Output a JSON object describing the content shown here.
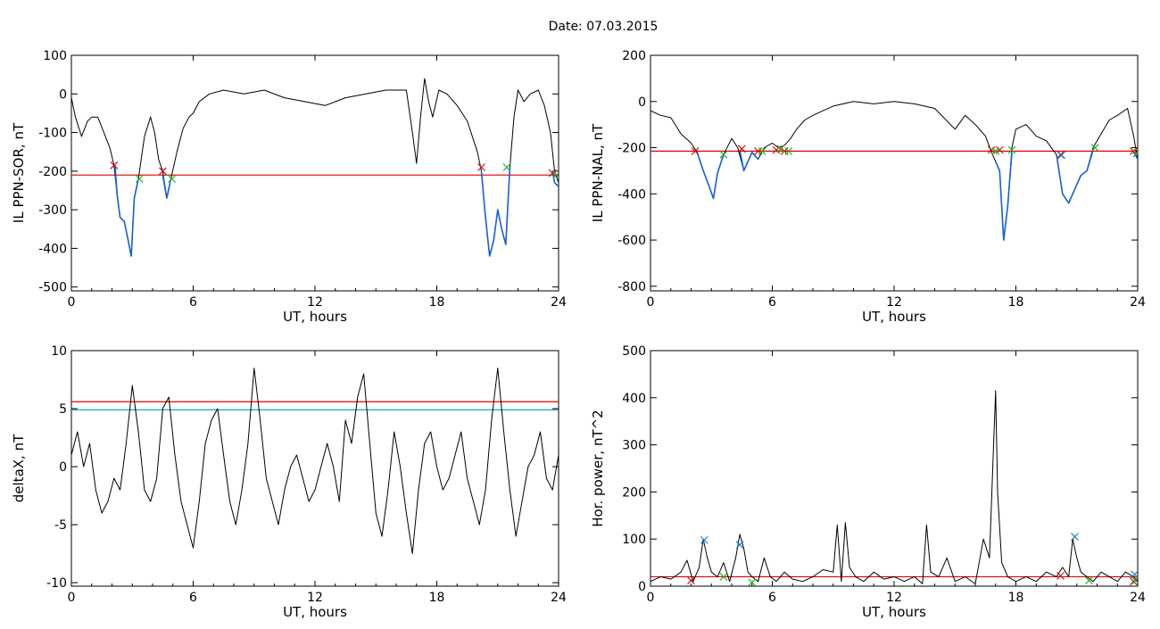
{
  "header": {
    "title": "Date:  07.03.2015"
  },
  "colors": {
    "trace": "#000000",
    "active": "#1560d6",
    "threshold": "#e00000",
    "cyan_threshold": "#009fb0",
    "green_marker": "#20b020",
    "red_marker": "#d01010",
    "blue_marker": "#1f7fd0"
  },
  "chart_data": [
    {
      "id": "sor",
      "type": "line",
      "xlabel": "UT, hours",
      "ylabel": "IL PPN-SOR, nT",
      "xlim": [
        0,
        24
      ],
      "ylim": [
        -510,
        100
      ],
      "xticks": [
        0,
        6,
        12,
        18,
        24
      ],
      "yticks": [
        100,
        0,
        -100,
        -200,
        -300,
        -400,
        -500
      ],
      "thresholds": [
        {
          "value": -210,
          "color": "red"
        }
      ],
      "series": [
        {
          "x": [
            0,
            0.2,
            0.5,
            0.8,
            1.0,
            1.3,
            1.6,
            1.9,
            2.1,
            2.25,
            2.4,
            2.6,
            2.8,
            2.95,
            3.1,
            3.3,
            3.6,
            3.9,
            4.1,
            4.3,
            4.5,
            4.7,
            4.9,
            5.2,
            5.5,
            5.8,
            6.0,
            6.3,
            6.8,
            7.5,
            8.5,
            9.5,
            10.5,
            11.5,
            12.5,
            13.5,
            14.5,
            15.5,
            16.5,
            16.8,
            17.0,
            17.2,
            17.4,
            17.6,
            17.8,
            18.1,
            18.5,
            19.0,
            19.5,
            20.0,
            20.2,
            20.4,
            20.6,
            20.8,
            21.0,
            21.2,
            21.4,
            21.6,
            21.8,
            22.0,
            22.3,
            22.6,
            23.0,
            23.3,
            23.6,
            23.8,
            24.0
          ],
          "y": [
            -10,
            -60,
            -110,
            -70,
            -60,
            -60,
            -100,
            -140,
            -185,
            -260,
            -320,
            -330,
            -380,
            -420,
            -270,
            -220,
            -110,
            -60,
            -100,
            -170,
            -200,
            -270,
            -220,
            -150,
            -90,
            -60,
            -50,
            -20,
            0,
            10,
            0,
            10,
            -10,
            -20,
            -30,
            -10,
            0,
            10,
            10,
            -100,
            -180,
            -60,
            40,
            -20,
            -60,
            10,
            0,
            -30,
            -70,
            -150,
            -200,
            -320,
            -420,
            -380,
            -300,
            -350,
            -390,
            -190,
            -60,
            10,
            -20,
            0,
            10,
            -30,
            -100,
            -200,
            -230
          ]
        },
        {
          "x": [
            2.15,
            2.25,
            2.4,
            2.6,
            2.8,
            2.95,
            3.1,
            3.3
          ],
          "y": [
            -185,
            -260,
            -320,
            -330,
            -380,
            -420,
            -270,
            -220
          ]
        },
        {
          "x": [
            4.5,
            4.7,
            4.9
          ],
          "y": [
            -210,
            -270,
            -220
          ]
        },
        {
          "x": [
            20.2,
            20.4,
            20.6,
            20.8,
            21.0,
            21.2,
            21.4,
            21.6
          ],
          "y": [
            -200,
            -320,
            -420,
            -380,
            -300,
            -350,
            -390,
            -190
          ]
        },
        {
          "x": [
            23.7,
            23.8,
            24.0
          ],
          "y": [
            -200,
            -230,
            -240
          ]
        }
      ],
      "red_markers": [
        [
          2.1,
          -185
        ],
        [
          4.5,
          -200
        ],
        [
          20.2,
          -190
        ],
        [
          23.7,
          -205
        ]
      ],
      "green_markers": [
        [
          3.35,
          -220
        ],
        [
          4.95,
          -220
        ],
        [
          21.45,
          -190
        ],
        [
          23.9,
          -210
        ]
      ],
      "blue_markers": []
    },
    {
      "id": "nal",
      "type": "line",
      "xlabel": "UT, hours",
      "ylabel": "IL PPN-NAL, nT",
      "xlim": [
        0,
        24
      ],
      "ylim": [
        -820,
        200
      ],
      "xticks": [
        0,
        6,
        12,
        18,
        24
      ],
      "yticks": [
        200,
        0,
        -200,
        -400,
        -600,
        -800
      ],
      "thresholds": [
        {
          "value": -215,
          "color": "red"
        }
      ],
      "series": [
        {
          "x": [
            0,
            0.5,
            1.0,
            1.5,
            2.0,
            2.3,
            2.6,
            2.9,
            3.1,
            3.3,
            3.6,
            4.0,
            4.3,
            4.6,
            4.8,
            5.0,
            5.3,
            5.6,
            6.0,
            6.3,
            6.6,
            6.9,
            7.2,
            7.6,
            8.0,
            8.5,
            9.0,
            10.0,
            11.0,
            12.0,
            13.0,
            14.0,
            15.0,
            15.5,
            16.0,
            16.5,
            16.8,
            17.0,
            17.2,
            17.4,
            17.6,
            17.8,
            18.0,
            18.5,
            19.0,
            19.5,
            20.0,
            20.3,
            20.6,
            20.9,
            21.2,
            21.5,
            21.8,
            22.2,
            22.6,
            23.0,
            23.5,
            23.8,
            24.0
          ],
          "y": [
            -40,
            -60,
            -70,
            -140,
            -180,
            -220,
            -300,
            -370,
            -420,
            -310,
            -230,
            -160,
            -200,
            -300,
            -260,
            -220,
            -250,
            -200,
            -180,
            -200,
            -190,
            -160,
            -120,
            -80,
            -60,
            -40,
            -20,
            0,
            -10,
            0,
            -10,
            -30,
            -120,
            -60,
            -100,
            -150,
            -220,
            -260,
            -300,
            -600,
            -450,
            -200,
            -120,
            -100,
            -150,
            -170,
            -230,
            -400,
            -440,
            -380,
            -320,
            -300,
            -200,
            -140,
            -80,
            -60,
            -30,
            -150,
            -250
          ]
        },
        {
          "x": [
            2.3,
            2.6,
            2.9,
            3.1,
            3.3,
            3.6
          ],
          "y": [
            -220,
            -300,
            -370,
            -420,
            -310,
            -230
          ]
        },
        {
          "x": [
            4.4,
            4.6,
            4.8,
            5.0,
            5.3
          ],
          "y": [
            -210,
            -300,
            -260,
            -220,
            -250
          ]
        },
        {
          "x": [
            17.0,
            17.2,
            17.4,
            17.6,
            17.8
          ],
          "y": [
            -260,
            -300,
            -600,
            -450,
            -220
          ]
        },
        {
          "x": [
            20.0,
            20.3,
            20.6,
            20.9,
            21.2,
            21.5,
            21.8
          ],
          "y": [
            -230,
            -400,
            -440,
            -380,
            -320,
            -300,
            -210
          ]
        },
        {
          "x": [
            23.8,
            24.0
          ],
          "y": [
            -220,
            -250
          ]
        }
      ],
      "red_markers": [
        [
          2.2,
          -215
        ],
        [
          4.5,
          -205
        ],
        [
          5.3,
          -215
        ],
        [
          6.2,
          -210
        ],
        [
          6.6,
          -215
        ],
        [
          16.8,
          -210
        ],
        [
          17.2,
          -210
        ],
        [
          20.2,
          -230
        ],
        [
          23.8,
          -215
        ]
      ],
      "green_markers": [
        [
          3.6,
          -230
        ],
        [
          5.5,
          -215
        ],
        [
          6.4,
          -205
        ],
        [
          6.8,
          -215
        ],
        [
          17.0,
          -215
        ],
        [
          17.8,
          -210
        ],
        [
          21.9,
          -200
        ],
        [
          23.95,
          -225
        ]
      ],
      "blue_markers": [
        [
          20.25,
          -232
        ]
      ]
    },
    {
      "id": "deltax",
      "type": "line",
      "xlabel": "UT, hours",
      "ylabel": "deltaX, nT",
      "xlim": [
        0,
        24
      ],
      "ylim": [
        -10.3,
        10
      ],
      "xticks": [
        0,
        6,
        12,
        18,
        24
      ],
      "yticks": [
        10,
        5,
        0,
        -5,
        -10
      ],
      "thresholds": [
        {
          "value": 5.6,
          "color": "red"
        },
        {
          "value": 4.9,
          "color": "cyan"
        }
      ],
      "series": [
        {
          "x": [
            0,
            0.3,
            0.6,
            0.9,
            1.2,
            1.5,
            1.8,
            2.1,
            2.4,
            2.7,
            3.0,
            3.3,
            3.6,
            3.9,
            4.2,
            4.5,
            4.8,
            5.1,
            5.4,
            5.7,
            6.0,
            6.3,
            6.6,
            6.9,
            7.2,
            7.5,
            7.8,
            8.1,
            8.4,
            8.7,
            9.0,
            9.3,
            9.6,
            9.9,
            10.2,
            10.5,
            10.8,
            11.1,
            11.4,
            11.7,
            12.0,
            12.3,
            12.6,
            12.9,
            13.2,
            13.5,
            13.8,
            14.1,
            14.4,
            14.7,
            15.0,
            15.3,
            15.6,
            15.9,
            16.2,
            16.5,
            16.8,
            17.1,
            17.4,
            17.7,
            18.0,
            18.3,
            18.6,
            18.9,
            19.2,
            19.5,
            19.8,
            20.1,
            20.4,
            20.7,
            21.0,
            21.3,
            21.6,
            21.9,
            22.2,
            22.5,
            22.8,
            23.1,
            23.4,
            23.7,
            24.0
          ],
          "y": [
            1,
            3,
            0,
            2,
            -2,
            -4,
            -3,
            -1,
            -2,
            2,
            7,
            3,
            -2,
            -3,
            -1,
            5,
            6,
            1,
            -3,
            -5,
            -7,
            -3,
            2,
            4,
            5,
            1,
            -3,
            -5,
            -2,
            2,
            8.5,
            4,
            -1,
            -3,
            -5,
            -2,
            0,
            1,
            -1,
            -3,
            -2,
            0,
            2,
            0,
            -3,
            4,
            2,
            6,
            8,
            2,
            -4,
            -6,
            -2,
            3,
            0,
            -4,
            -7.5,
            -2,
            2,
            3,
            0,
            -2,
            -1,
            1,
            3,
            -1,
            -3,
            -5,
            -2,
            4,
            8.5,
            3,
            -2,
            -6,
            -3,
            0,
            1,
            3,
            -1,
            -2,
            1
          ]
        }
      ],
      "red_markers": [],
      "green_markers": [],
      "blue_markers": []
    },
    {
      "id": "power",
      "type": "line",
      "xlabel": "UT, hours",
      "ylabel": "Hor. power, nT^2",
      "xlim": [
        0,
        24
      ],
      "ylim": [
        0,
        500
      ],
      "xticks": [
        0,
        6,
        12,
        18,
        24
      ],
      "yticks": [
        500,
        400,
        300,
        200,
        100,
        0
      ],
      "thresholds": [
        {
          "value": 20,
          "color": "red"
        }
      ],
      "series": [
        {
          "x": [
            0,
            0.5,
            1.0,
            1.5,
            1.8,
            2.1,
            2.4,
            2.6,
            2.8,
            3.0,
            3.3,
            3.6,
            3.9,
            4.2,
            4.4,
            4.6,
            4.8,
            5.0,
            5.3,
            5.6,
            5.9,
            6.2,
            6.6,
            7.0,
            7.5,
            8.0,
            8.5,
            9.0,
            9.2,
            9.4,
            9.6,
            9.8,
            10.1,
            10.5,
            11.0,
            11.5,
            12.0,
            12.5,
            13.0,
            13.4,
            13.6,
            13.8,
            14.2,
            14.6,
            15.0,
            15.5,
            16.0,
            16.4,
            16.7,
            16.9,
            17.0,
            17.1,
            17.3,
            17.6,
            18.0,
            18.5,
            19.0,
            19.5,
            20.0,
            20.3,
            20.6,
            20.8,
            21.0,
            21.2,
            21.5,
            21.8,
            22.2,
            22.6,
            23.0,
            23.4,
            23.8,
            24.0
          ],
          "y": [
            10,
            20,
            15,
            30,
            55,
            10,
            40,
            100,
            60,
            30,
            20,
            50,
            10,
            60,
            110,
            80,
            30,
            20,
            10,
            60,
            20,
            10,
            30,
            15,
            10,
            20,
            35,
            30,
            130,
            10,
            135,
            40,
            20,
            10,
            30,
            15,
            20,
            10,
            20,
            5,
            130,
            30,
            20,
            60,
            10,
            20,
            5,
            100,
            60,
            300,
            415,
            200,
            50,
            20,
            10,
            20,
            10,
            30,
            20,
            40,
            20,
            100,
            60,
            30,
            20,
            10,
            30,
            20,
            10,
            30,
            20,
            10
          ]
        }
      ],
      "red_markers": [
        [
          2.0,
          12
        ],
        [
          20.2,
          22
        ],
        [
          23.8,
          10
        ]
      ],
      "green_markers": [
        [
          3.6,
          20
        ],
        [
          5.0,
          8
        ],
        [
          21.6,
          12
        ],
        [
          23.9,
          12
        ]
      ],
      "blue_markers": [
        [
          2.65,
          98
        ],
        [
          4.4,
          88
        ],
        [
          20.9,
          105
        ],
        [
          23.85,
          25
        ]
      ]
    }
  ]
}
